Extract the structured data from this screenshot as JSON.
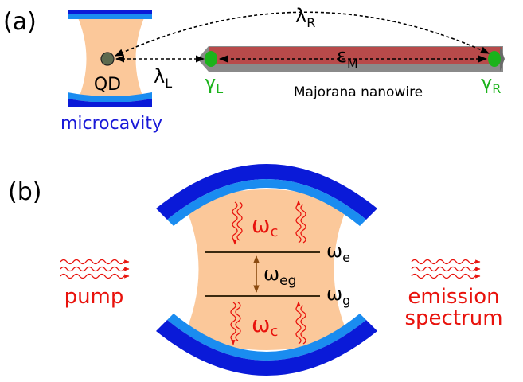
{
  "panel_a": {
    "label": "(a)",
    "qd": "QD",
    "microcavity": "microcavity",
    "lambda_L": {
      "base": "λ",
      "sub": "L"
    },
    "lambda_R": {
      "base": "λ",
      "sub": "R"
    },
    "epsilon_M": {
      "base": "ε",
      "sub": "M"
    },
    "gamma_L": {
      "base": "γ",
      "sub": "L"
    },
    "gamma_R": {
      "base": "γ",
      "sub": "R"
    },
    "nanowire": "Majorana nanowire"
  },
  "panel_b": {
    "label": "(b)",
    "omega_c_top": {
      "base": "ω",
      "sub": "c"
    },
    "omega_c_bottom": {
      "base": "ω",
      "sub": "c"
    },
    "omega_e": {
      "base": "ω",
      "sub": "e"
    },
    "omega_eg": {
      "base": "ω",
      "sub": "eg"
    },
    "omega_g": {
      "base": "ω",
      "sub": "g"
    },
    "pump": "pump",
    "emission_line1": "emission",
    "emission_line2": "spectrum"
  },
  "colors": {
    "cavity_dark_blue": "#0a1ad8",
    "cavity_light_blue": "#1a8cf0",
    "cavity_fill": "#fbc89a",
    "nanowire_red": "#b84a4a",
    "nanowire_gray": "#8a8a8a",
    "majorana_green": "#1bb31b",
    "qd_dot": "#5d6a4e",
    "red_text": "#e8120c",
    "blue_text": "#1a1ad8"
  }
}
